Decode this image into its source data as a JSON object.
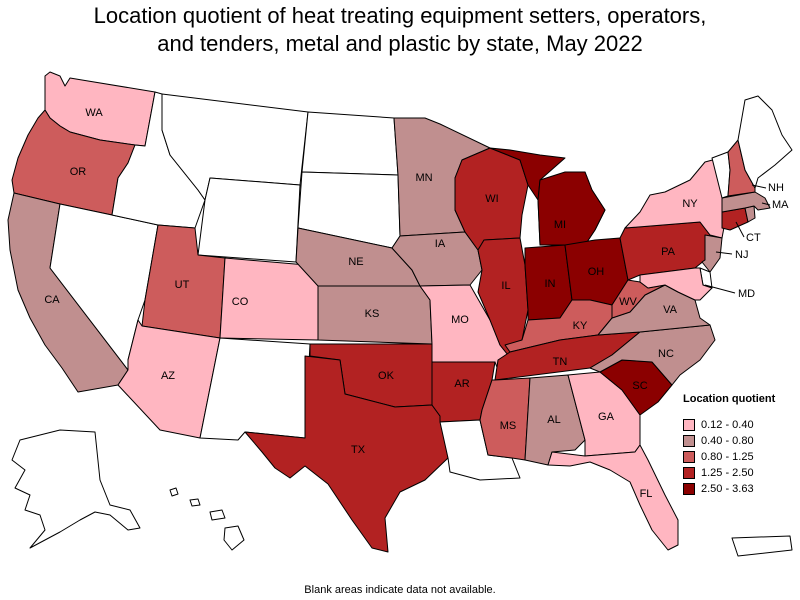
{
  "title_lines": [
    "Location quotient of heat treating equipment setters, operators,",
    "and tenders, metal and plastic by state, May 2022"
  ],
  "legend": {
    "title": "Location quotient",
    "classes": [
      {
        "label": "0.12 - 0.40",
        "color": "#ffb6c1"
      },
      {
        "label": "0.40 - 0.80",
        "color": "#c08f8f"
      },
      {
        "label": "0.80 - 1.25",
        "color": "#cd5c5c"
      },
      {
        "label": "1.25 - 2.50",
        "color": "#b22222"
      },
      {
        "label": "2.50 - 3.63",
        "color": "#8b0000"
      }
    ]
  },
  "footnote": "Blank areas indicate data not available.",
  "no_data_color": "#ffffff",
  "states": {
    "WA": {
      "label": "WA",
      "class": 0
    },
    "OR": {
      "label": "OR",
      "class": 2
    },
    "CA": {
      "label": "CA",
      "class": 1
    },
    "NV": {
      "label": "",
      "class": null
    },
    "ID": {
      "label": "",
      "class": null
    },
    "MT": {
      "label": "",
      "class": null
    },
    "WY": {
      "label": "",
      "class": null
    },
    "UT": {
      "label": "UT",
      "class": 2
    },
    "AZ": {
      "label": "AZ",
      "class": 0
    },
    "CO": {
      "label": "CO",
      "class": 0
    },
    "NM": {
      "label": "",
      "class": null
    },
    "ND": {
      "label": "",
      "class": null
    },
    "SD": {
      "label": "",
      "class": null
    },
    "NE": {
      "label": "NE",
      "class": 1
    },
    "KS": {
      "label": "KS",
      "class": 1
    },
    "OK": {
      "label": "OK",
      "class": 3
    },
    "TX": {
      "label": "TX",
      "class": 3
    },
    "MN": {
      "label": "MN",
      "class": 1
    },
    "IA": {
      "label": "IA",
      "class": 1
    },
    "MO": {
      "label": "MO",
      "class": 0
    },
    "AR": {
      "label": "AR",
      "class": 3
    },
    "LA": {
      "label": "",
      "class": null
    },
    "WI": {
      "label": "WI",
      "class": 3
    },
    "IL": {
      "label": "IL",
      "class": 3
    },
    "MI": {
      "label": "MI",
      "class": 4
    },
    "IN": {
      "label": "IN",
      "class": 4
    },
    "OH": {
      "label": "OH",
      "class": 4
    },
    "KY": {
      "label": "KY",
      "class": 2
    },
    "TN": {
      "label": "TN",
      "class": 3
    },
    "MS": {
      "label": "MS",
      "class": 2
    },
    "AL": {
      "label": "AL",
      "class": 1
    },
    "GA": {
      "label": "GA",
      "class": 0
    },
    "FL": {
      "label": "FL",
      "class": 0
    },
    "SC": {
      "label": "SC",
      "class": 4
    },
    "NC": {
      "label": "NC",
      "class": 1
    },
    "VA": {
      "label": "VA",
      "class": 1
    },
    "WV": {
      "label": "WV",
      "class": 2
    },
    "PA": {
      "label": "PA",
      "class": 3
    },
    "NY": {
      "label": "NY",
      "class": 0
    },
    "NJ": {
      "label": "NJ",
      "class": 1
    },
    "DE": {
      "label": "",
      "class": null
    },
    "MD": {
      "label": "MD",
      "class": 0
    },
    "CT": {
      "label": "CT",
      "class": 3
    },
    "RI": {
      "label": "",
      "class": 1
    },
    "MA": {
      "label": "MA",
      "class": 1
    },
    "VT": {
      "label": "",
      "class": null
    },
    "NH": {
      "label": "NH",
      "class": 2
    },
    "ME": {
      "label": "",
      "class": null
    },
    "AK": {
      "label": "",
      "class": null
    },
    "HI": {
      "label": "",
      "class": null
    },
    "PR": {
      "label": "",
      "class": null
    }
  }
}
